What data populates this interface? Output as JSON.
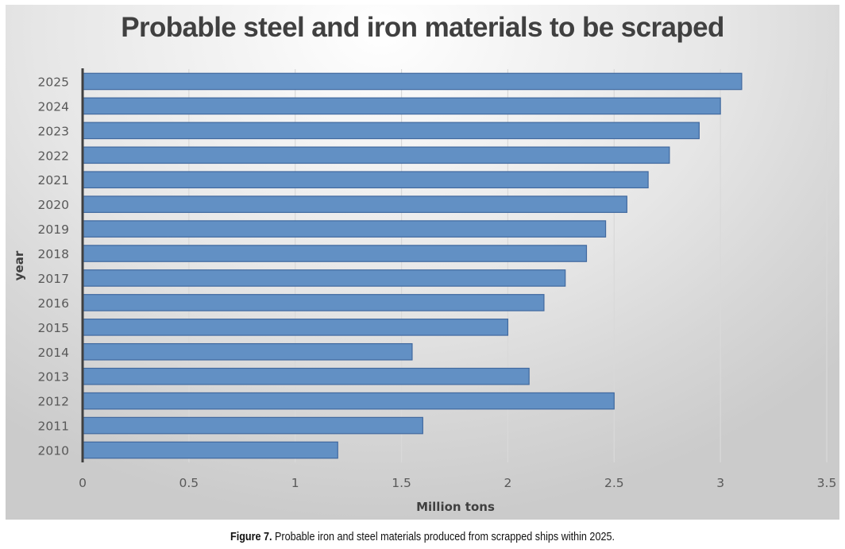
{
  "chart_data": {
    "type": "bar",
    "orientation": "horizontal",
    "title": "Probable steel and iron materials to be scraped",
    "xlabel": "Million tons",
    "ylabel": "year",
    "xlim": [
      0,
      3.5
    ],
    "x_ticks": [
      "0",
      "0.5",
      "1",
      "1.5",
      "2",
      "2.5",
      "3",
      "3.5"
    ],
    "x_tick_values": [
      0,
      0.5,
      1,
      1.5,
      2,
      2.5,
      3,
      3.5
    ],
    "grid": "vertical",
    "legend": "none",
    "categories": [
      "2025",
      "2024",
      "2023",
      "2022",
      "2021",
      "2020",
      "2019",
      "2018",
      "2017",
      "2016",
      "2015",
      "2014",
      "2013",
      "2012",
      "2011",
      "2010"
    ],
    "series": [
      {
        "name": "Million tons",
        "color": "#6290c4",
        "values": [
          3.1,
          3.0,
          2.9,
          2.76,
          2.66,
          2.56,
          2.46,
          2.37,
          2.27,
          2.17,
          2.0,
          1.55,
          2.1,
          2.5,
          1.6,
          1.2
        ]
      }
    ]
  },
  "caption": {
    "label": "Figure 7.",
    "text": " Probable iron and steel materials produced from scrapped ships within 2025."
  },
  "colors": {
    "bar_fill": "#6290c4",
    "bar_stroke": "#41699f",
    "title": "#404040",
    "axis_line": "#404040"
  }
}
